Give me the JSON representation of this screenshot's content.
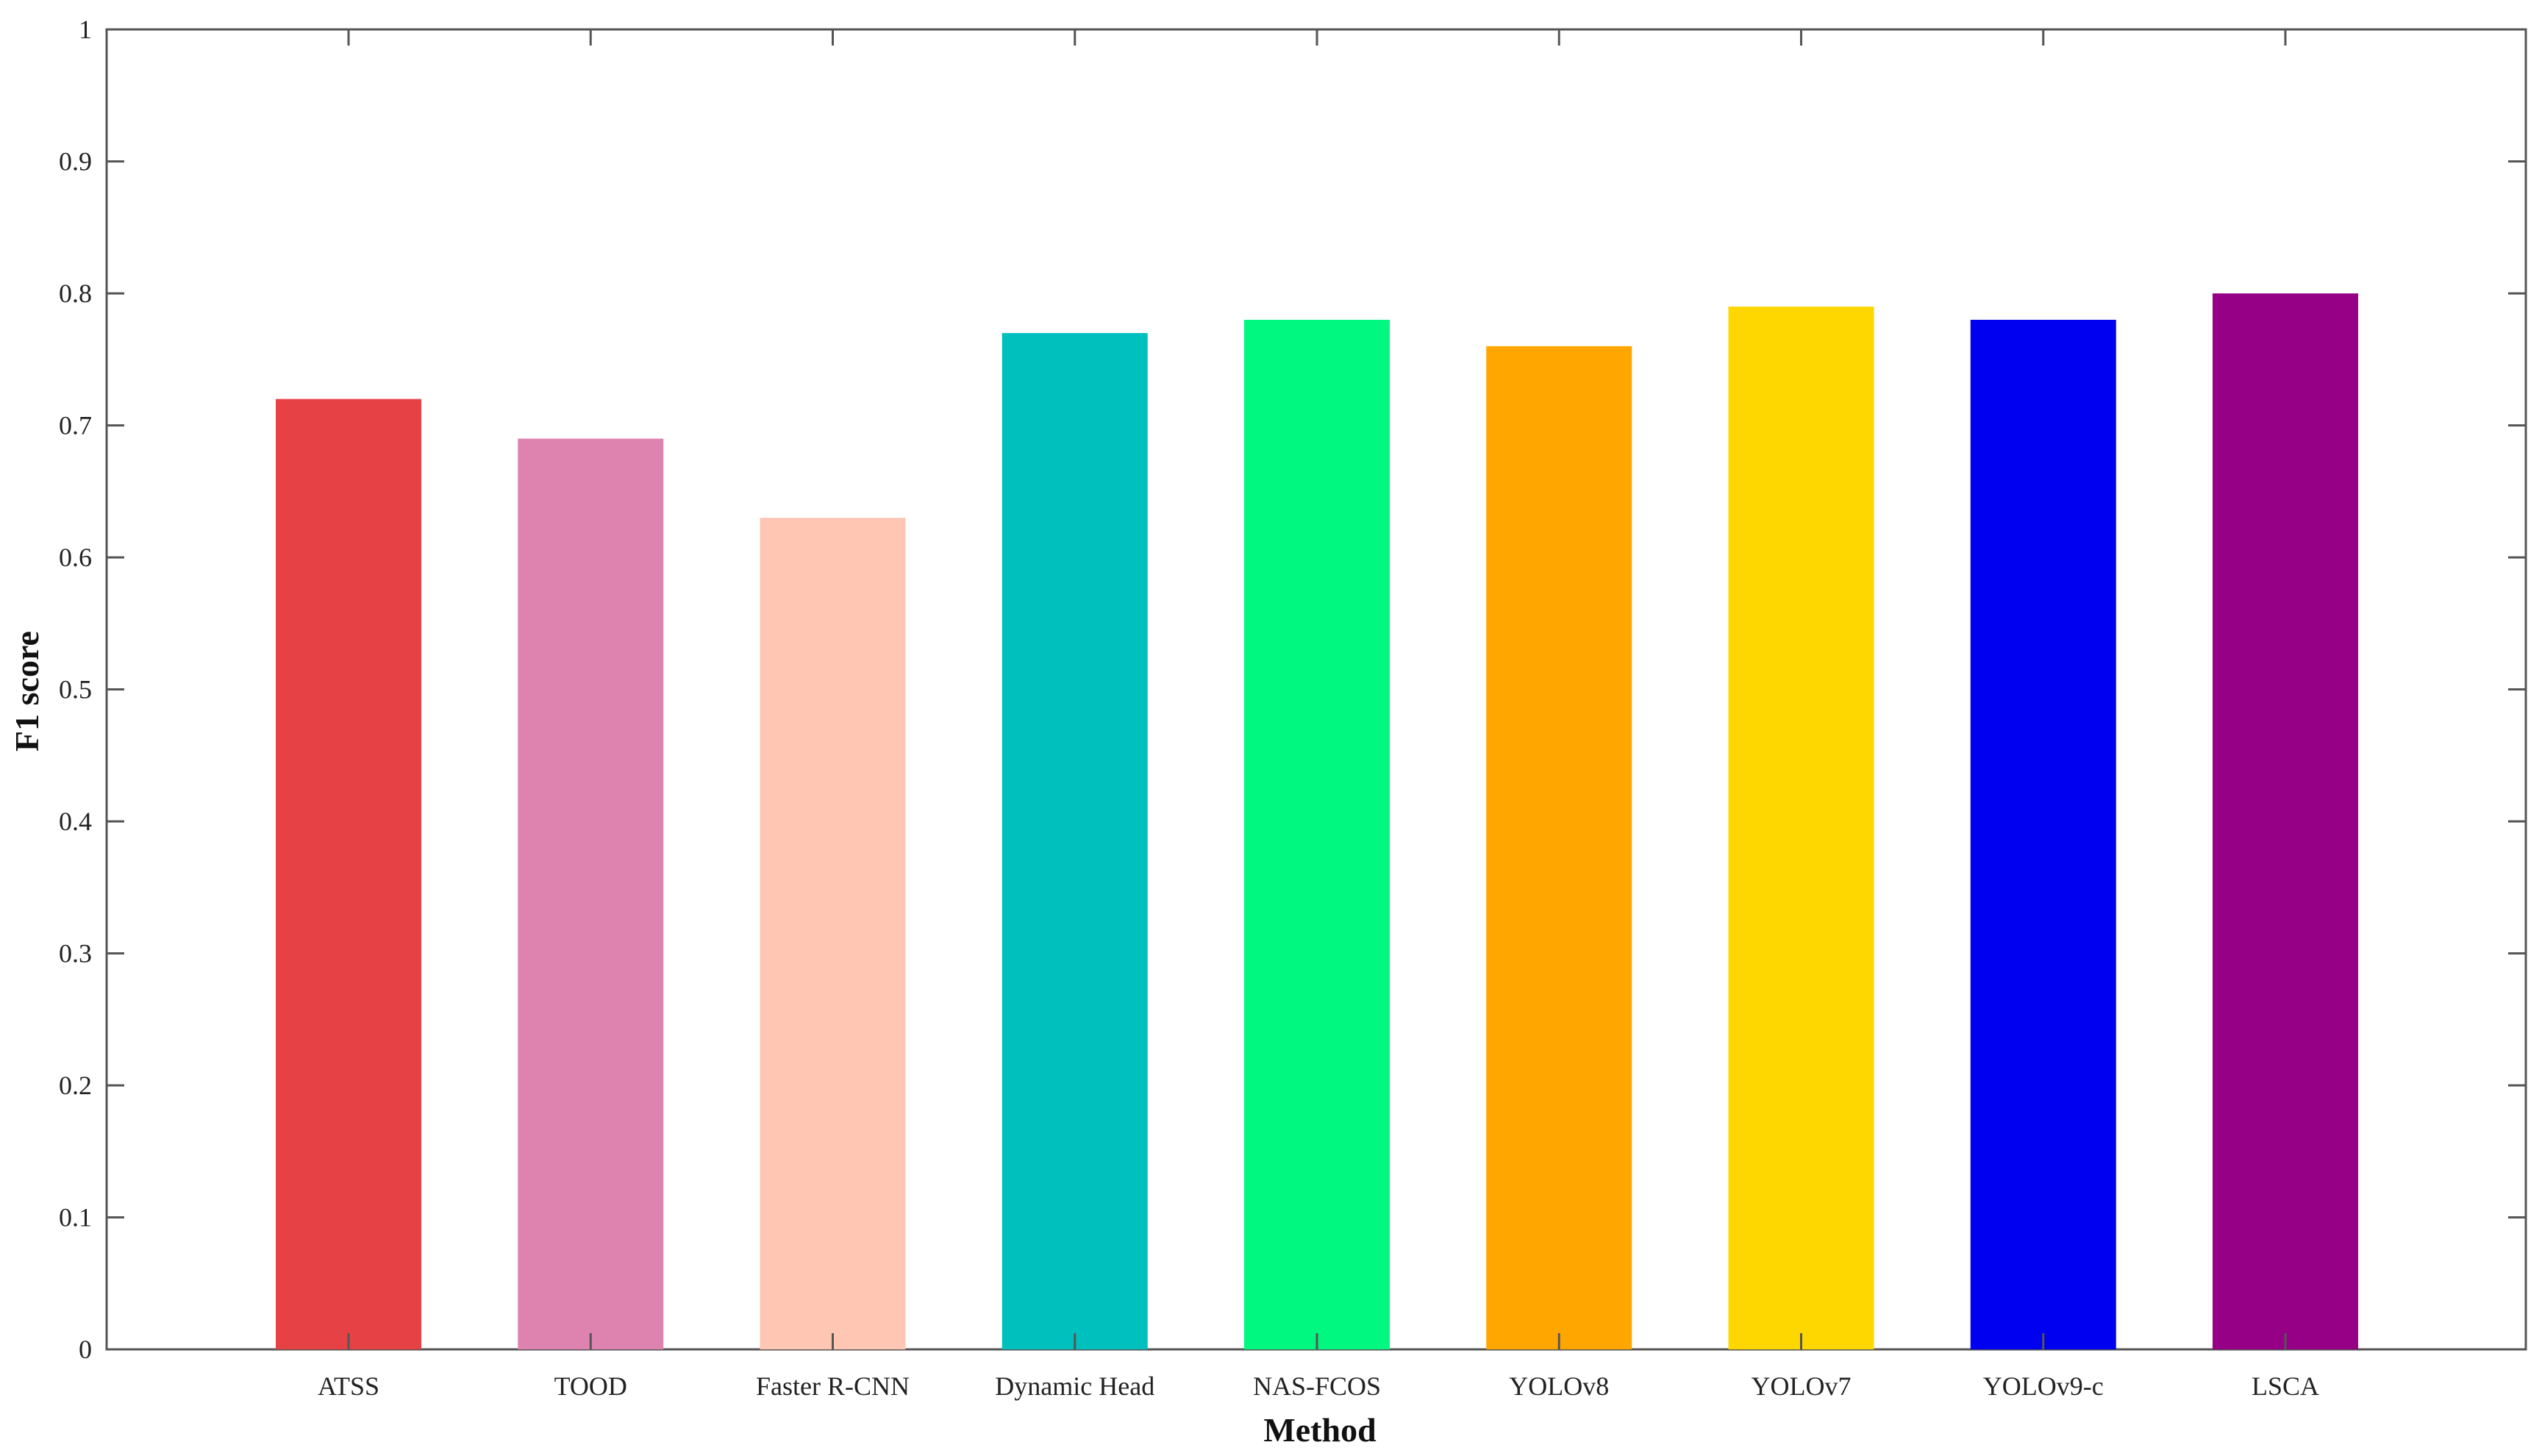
{
  "chart_data": {
    "type": "bar",
    "title": "",
    "xlabel": "Method",
    "ylabel": "F1 score",
    "categories": [
      "ATSS",
      "TOOD",
      "Faster R-CNN",
      "Dynamic Head",
      "NAS-FCOS",
      "YOLOv8",
      "YOLOv7",
      "YOLOv9-c",
      "LSCA"
    ],
    "values": [
      0.72,
      0.69,
      0.63,
      0.77,
      0.78,
      0.76,
      0.79,
      0.78,
      0.8
    ],
    "colors": [
      "#E64145",
      "#DE83B0",
      "#FFC6B4",
      "#00C0BE",
      "#00F881",
      "#FFA600",
      "#FFD700",
      "#0000F0",
      "#960087"
    ],
    "ylim": [
      0,
      1
    ],
    "yticks": [
      "0",
      "0.1",
      "0.2",
      "0.3",
      "0.4",
      "0.5",
      "0.6",
      "0.7",
      "0.8",
      "0.9",
      "1"
    ],
    "grid": false,
    "legend": "none"
  }
}
